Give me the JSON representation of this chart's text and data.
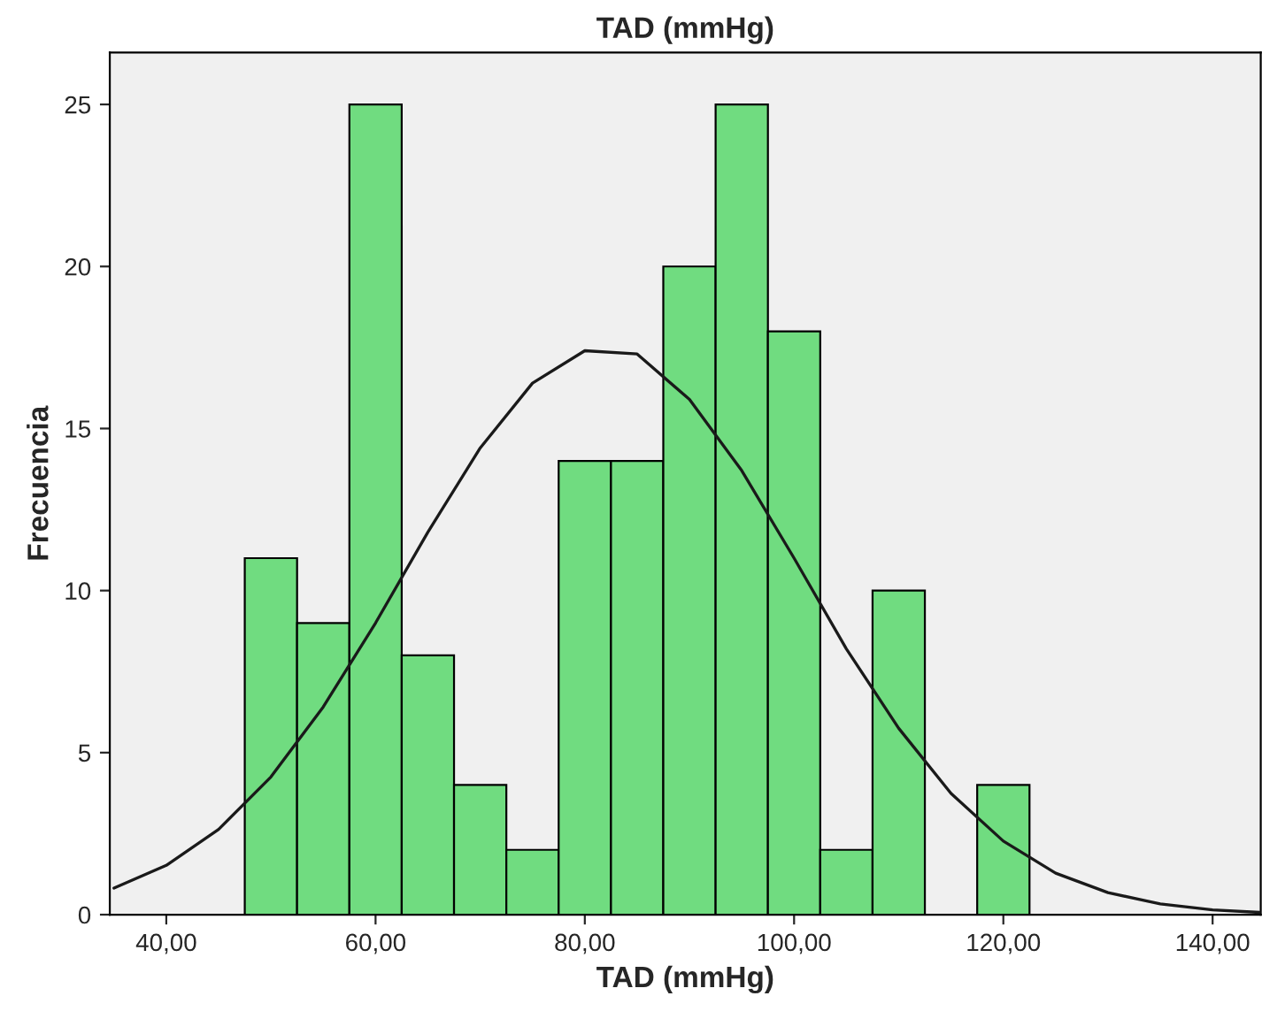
{
  "chart_data": {
    "type": "histogram",
    "title": "TAD (mmHg)",
    "xlabel": "TAD (mmHg)",
    "ylabel": "Frecuencia",
    "bins": [
      47.5,
      52.5,
      57.5,
      62.5,
      67.5,
      72.5,
      77.5,
      82.5,
      87.5,
      92.5,
      97.5,
      102.5,
      107.5,
      112.5,
      117.5,
      122.5
    ],
    "values": [
      11,
      9,
      25,
      8,
      4,
      2,
      14,
      14,
      20,
      25,
      18,
      2,
      10,
      0,
      4
    ],
    "color": "#70dc80",
    "series": [
      {
        "type": "line",
        "color": "#1a1a1a",
        "x": [
          35,
          40,
          45,
          50,
          55,
          60,
          65,
          70,
          75,
          80,
          85,
          90,
          95,
          100,
          105,
          110,
          115,
          120,
          125,
          130,
          135,
          140,
          144.5
        ],
        "values": [
          0.82,
          1.52,
          2.63,
          4.25,
          6.41,
          9.0,
          11.8,
          14.4,
          16.4,
          17.4,
          17.3,
          15.9,
          13.7,
          11.0,
          8.2,
          5.75,
          3.74,
          2.27,
          1.28,
          0.68,
          0.33,
          0.15,
          0.07
        ]
      }
    ],
    "xlim": [
      34.6,
      144.6
    ],
    "ylim": [
      0,
      26.6
    ],
    "xticks": [
      {
        "value": 40,
        "label": "40,00"
      },
      {
        "value": 60,
        "label": "60,00"
      },
      {
        "value": 80,
        "label": "80,00"
      },
      {
        "value": 100,
        "label": "100,00"
      },
      {
        "value": 120,
        "label": "120,00"
      },
      {
        "value": 140,
        "label": "140,00"
      }
    ],
    "yticks": [
      0,
      5,
      10,
      15,
      20,
      25
    ],
    "grid": false,
    "legend": false
  }
}
